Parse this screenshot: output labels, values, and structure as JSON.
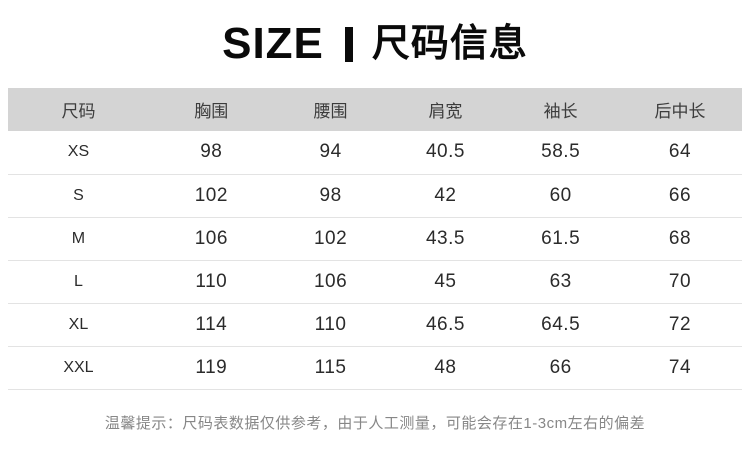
{
  "title": {
    "left": "SIZE",
    "right": "尺码信息"
  },
  "table": {
    "headers": [
      "尺码",
      "胸围",
      "腰围",
      "肩宽",
      "袖长",
      "后中长"
    ],
    "rows": [
      {
        "size": "XS",
        "values": [
          "98",
          "94",
          "40.5",
          "58.5",
          "64"
        ]
      },
      {
        "size": "S",
        "values": [
          "102",
          "98",
          "42",
          "60",
          "66"
        ]
      },
      {
        "size": "M",
        "values": [
          "106",
          "102",
          "43.5",
          "61.5",
          "68"
        ]
      },
      {
        "size": "L",
        "values": [
          "110",
          "106",
          "45",
          "63",
          "70"
        ]
      },
      {
        "size": "XL",
        "values": [
          "114",
          "110",
          "46.5",
          "64.5",
          "72"
        ]
      },
      {
        "size": "XXL",
        "values": [
          "119",
          "115",
          "48",
          "66",
          "74"
        ]
      }
    ]
  },
  "note": "温馨提示：尺码表数据仅供参考，由于人工测量，可能会存在1-3cm左右的偏差",
  "colors": {
    "header_bg": "#d4d4d4",
    "divider": "#e3e3e3",
    "title_text": "#0a0a0a",
    "body_text": "#2b2b2b",
    "note_text": "#878787"
  }
}
